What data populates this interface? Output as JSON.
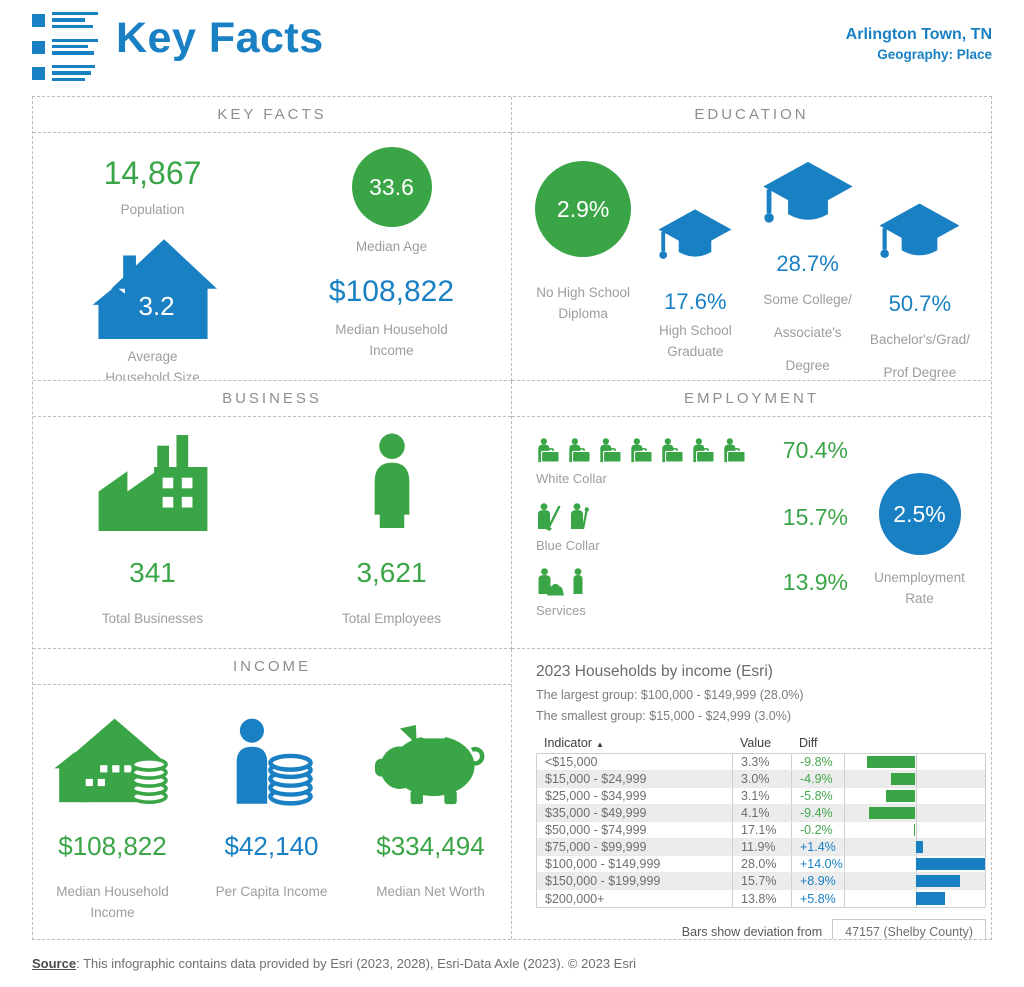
{
  "header": {
    "title": "Key Facts",
    "location": "Arlington Town, TN",
    "geography": "Geography: Place"
  },
  "colors": {
    "blue": "#1a80c4",
    "green": "#3aa546",
    "diff_negative": "#44a94d",
    "diff_positive": "#1a80c4"
  },
  "panels": {
    "key_facts": {
      "title": "KEY FACTS",
      "population_value": "14,867",
      "population_label": "Population",
      "household_size_value": "3.2",
      "household_size_label": "Average\nHousehold Size",
      "median_age_value": "33.6",
      "median_age_label": "Median Age",
      "median_income_value": "$108,822",
      "median_income_label": "Median Household\nIncome"
    },
    "education": {
      "title": "EDUCATION",
      "items": [
        {
          "value": "2.9%",
          "label": "No High School\nDiploma"
        },
        {
          "value": "17.6%",
          "label": "High School\nGraduate"
        },
        {
          "value": "28.7%",
          "label": "Some College/\nAssociate's Degree"
        },
        {
          "value": "50.7%",
          "label": "Bachelor's/Grad/\nProf Degree"
        }
      ]
    },
    "business": {
      "title": "BUSINESS",
      "businesses_value": "341",
      "businesses_label": "Total Businesses",
      "employees_value": "3,621",
      "employees_label": "Total Employees"
    },
    "employment": {
      "title": "EMPLOYMENT",
      "categories": [
        {
          "label": "White Collar",
          "value": "70.4%",
          "icon_count": 7
        },
        {
          "label": "Blue Collar",
          "value": "15.7%",
          "icon_count": 2
        },
        {
          "label": "Services",
          "value": "13.9%",
          "icon_count": 2
        }
      ],
      "unemployment_value": "2.5%",
      "unemployment_label": "Unemployment\nRate"
    },
    "income": {
      "title": "INCOME",
      "items": [
        {
          "value": "$108,822",
          "label": "Median Household\nIncome"
        },
        {
          "value": "$42,140",
          "label": "Per Capita Income"
        },
        {
          "value": "$334,494",
          "label": "Median Net Worth"
        }
      ]
    },
    "households": {
      "title": "2023 Households by income (Esri)",
      "largest_group": "The largest group: $100,000 - $149,999 (28.0%)",
      "smallest_group": "The smallest group: $15,000 - $24,999 (3.0%)",
      "col_indicator": "Indicator",
      "sort_indicator": "▲",
      "col_value": "Value",
      "col_diff": "Diff",
      "rows": [
        {
          "indicator": "<$15,000",
          "value": "3.3%",
          "diff": "-9.8%",
          "diff_num": -9.8
        },
        {
          "indicator": "$15,000 - $24,999",
          "value": "3.0%",
          "diff": "-4.9%",
          "diff_num": -4.9
        },
        {
          "indicator": "$25,000 - $34,999",
          "value": "3.1%",
          "diff": "-5.8%",
          "diff_num": -5.8
        },
        {
          "indicator": "$35,000 - $49,999",
          "value": "4.1%",
          "diff": "-9.4%",
          "diff_num": -9.4
        },
        {
          "indicator": "$50,000 - $74,999",
          "value": "17.1%",
          "diff": "-0.2%",
          "diff_num": -0.2
        },
        {
          "indicator": "$75,000 - $99,999",
          "value": "11.9%",
          "diff": "+1.4%",
          "diff_num": 1.4
        },
        {
          "indicator": "$100,000 - $149,999",
          "value": "28.0%",
          "diff": "+14.0%",
          "diff_num": 14.0
        },
        {
          "indicator": "$150,000 - $199,999",
          "value": "15.7%",
          "diff": "+8.9%",
          "diff_num": 8.9
        },
        {
          "indicator": "$200,000+",
          "value": "13.8%",
          "diff": "+5.8%",
          "diff_num": 5.8
        }
      ],
      "deviation_label": "Bars show deviation from",
      "deviation_value": "47157 (Shelby County)"
    }
  },
  "footer": {
    "source_label": "Source",
    "source_text": ": This infographic contains data provided by Esri (2023, 2028), Esri-Data Axle (2023).  © 2023 Esri"
  },
  "chart_data": {
    "type": "bar",
    "title": "2023 Households by income (Esri)",
    "categories": [
      "<$15,000",
      "$15,000 - $24,999",
      "$25,000 - $34,999",
      "$35,000 - $49,999",
      "$50,000 - $74,999",
      "$75,000 - $99,999",
      "$100,000 - $149,999",
      "$150,000 - $199,999",
      "$200,000+"
    ],
    "series": [
      {
        "name": "Value",
        "values": [
          3.3,
          3.0,
          3.1,
          4.1,
          17.1,
          11.9,
          28.0,
          15.7,
          13.8
        ]
      },
      {
        "name": "Diff",
        "values": [
          -9.8,
          -4.9,
          -5.8,
          -9.4,
          -0.2,
          1.4,
          14.0,
          8.9,
          5.8
        ]
      }
    ],
    "xlabel": "Indicator",
    "ylabel": "Diff (%)",
    "xlim": [
      -14,
      14
    ],
    "note": "Bars show deviation from 47157 (Shelby County); negative bars green, positive bars blue"
  }
}
